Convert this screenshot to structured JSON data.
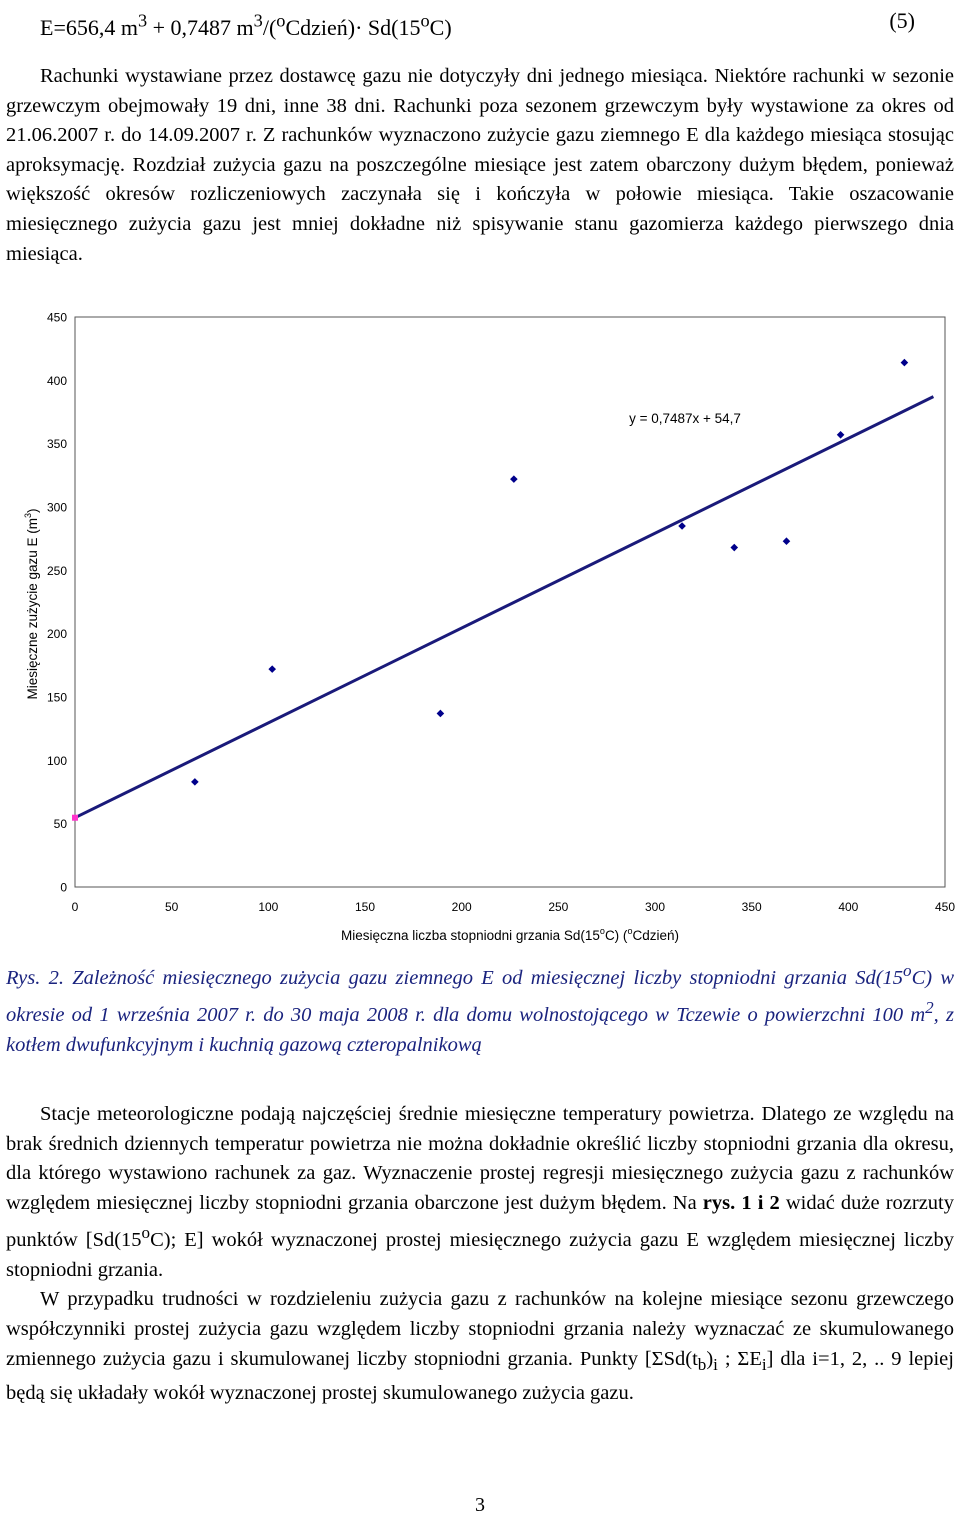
{
  "equation": {
    "text_a": "E=656,4 m",
    "sup_a": "3",
    "text_b": " + 0,7487 m",
    "sup_b": "3",
    "text_c": "/(",
    "sup_c": "o",
    "text_d": "Cdzień)· Sd(15",
    "sup_d": "o",
    "text_e": "C)",
    "number": "(5)"
  },
  "paragraph1": {
    "text": "Rachunki wystawiane przez dostawcę gazu nie dotyczyły dni jednego miesiąca. Niektóre rachunki w sezonie grzewczym obejmowały 19 dni, inne 38 dni. Rachunki poza sezonem grzewczym były wystawione za okres od 21.06.2007 r. do 14.09.2007 r. Z rachunków wyznaczono zużycie gazu ziemnego E dla każdego miesiąca stosując aproksymację. Rozdział zużycia gazu na poszczególne miesiące jest zatem obarczony dużym błędem, ponieważ większość okresów rozliczeniowych zaczynała się i kończyła w połowie miesiąca. Takie oszacowanie miesięcznego zużycia gazu jest mniej dokładne niż spisywanie stanu gazomierza każdego pierwszego dnia miesiąca."
  },
  "chart_data": {
    "type": "scatter",
    "xlabel_a": "Miesięczna liczba stopniodni grzania Sd(15",
    "xlabel_sup1": "o",
    "xlabel_b": "C) (",
    "xlabel_sup2": "o",
    "xlabel_c": "Cdzień)",
    "ylabel_a": "Miesięczne zużycie gazu E (m",
    "ylabel_sup": "3",
    "ylabel_b": ")",
    "xlim": [
      0,
      450
    ],
    "ylim": [
      0,
      450
    ],
    "x_ticks": [
      "0",
      "50",
      "100",
      "150",
      "200",
      "250",
      "300",
      "350",
      "400",
      "450"
    ],
    "y_ticks": [
      "0",
      "50",
      "100",
      "150",
      "200",
      "250",
      "300",
      "350",
      "400",
      "450"
    ],
    "points": [
      {
        "x": 62,
        "y": 83
      },
      {
        "x": 102,
        "y": 172
      },
      {
        "x": 189,
        "y": 137
      },
      {
        "x": 227,
        "y": 322
      },
      {
        "x": 314,
        "y": 285
      },
      {
        "x": 341,
        "y": 268
      },
      {
        "x": 368,
        "y": 273
      },
      {
        "x": 396,
        "y": 357
      },
      {
        "x": 429,
        "y": 414
      }
    ],
    "intercept_point": {
      "x": 0,
      "y": 54.7
    },
    "regression": {
      "slope": 0.7487,
      "intercept": 54.7,
      "x_range": [
        0,
        444
      ]
    },
    "equation_label": "y = 0,7487x + 54,7",
    "colors": {
      "points": "#00008b",
      "line": "#1a1a7a",
      "intercept": "#ff33cc"
    }
  },
  "caption": {
    "text_a": "Rys. 2. Zależność miesięcznego zużycia gazu ziemnego E od miesięcznej liczby stopniodni grzania Sd(15",
    "sup_a": "o",
    "text_b": "C) w okresie od 1 września 2007 r. do 30 maja 2008 r.  dla domu wolnostojącego w Tczewie o powierzchni 100 m",
    "sup_b": "2",
    "text_c": ", z kotłem dwufunkcyjnym  i kuchnią gazową czteropalnikową"
  },
  "paragraph2": {
    "s1": "Stacje meteorologiczne podają najczęściej średnie miesięczne temperatury powietrza. Dlatego ze względu na brak średnich dziennych temperatur powietrza nie można dokładnie określić liczby stopniodni grzania dla okresu, dla którego wystawiono rachunek za gaz. Wyznaczenie prostej regresji miesięcznego zużycia gazu z rachunków względem miesięcznej liczby stopniodni grzania  obarczone jest dużym błędem. Na ",
    "bold1": "rys.",
    "s2": " ",
    "bold2": "1 i 2",
    "s3": " widać duże rozrzuty punktów [Sd(15",
    "sup1": "o",
    "s4": "C); E] wokół wyznaczonej prostej miesięcznego zużycia gazu E względem miesięcznej liczby stopniodni grzania.",
    "s5": "W przypadku trudności w rozdzieleniu zużycia gazu z rachunków na kolejne miesiące sezonu grzewczego współczynniki prostej zużycia gazu względem liczby stopniodni grzania należy wyznaczać ze skumulowanego zmiennego zużycia gazu i skumulowanej liczby stopniodni grzania. Punkty [ΣSd(t",
    "sub1": "b",
    "s6": ")",
    "sub2": "i",
    "s7": " ; ΣE",
    "sub3": "i",
    "s8": "] dla i=1, 2, .. 9 lepiej  będą się układały wokół wyznaczonej prostej skumulowanego zużycia gazu."
  },
  "page_number": "3"
}
